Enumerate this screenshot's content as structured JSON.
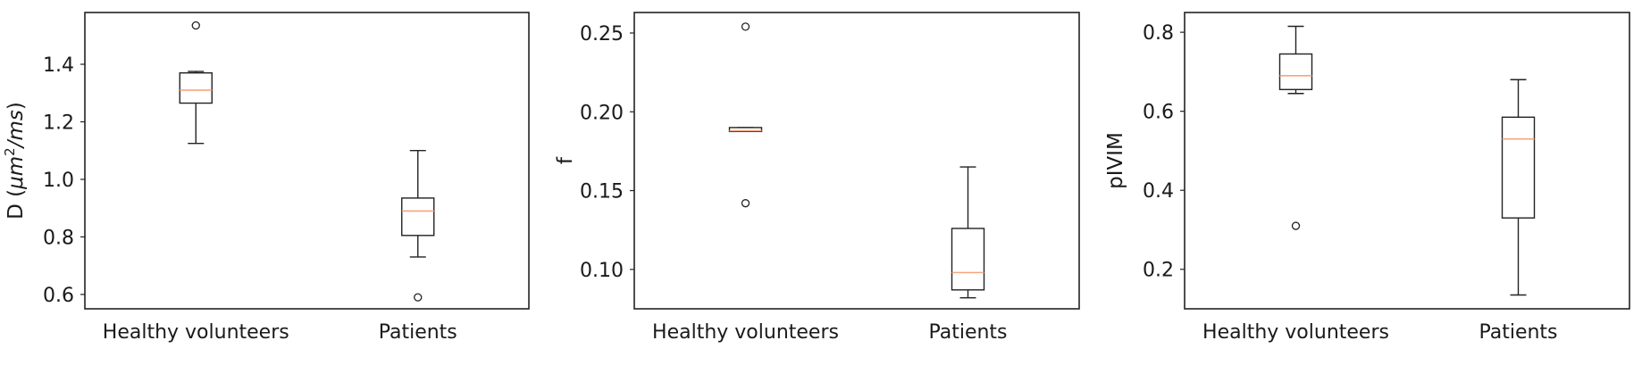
{
  "chart_data": [
    {
      "type": "box",
      "ylabel_plain": "D (",
      "ylabel_math": "μm",
      "ylabel_sup": "2",
      "ylabel_math2": "/ms",
      "ylabel_close": ")",
      "categories": [
        "Healthy volunteers",
        "Patients"
      ],
      "ylim": [
        0.55,
        1.58
      ],
      "yticks": [
        0.6,
        0.8,
        1.0,
        1.2,
        1.4
      ],
      "ytick_labels": [
        "0.6",
        "0.8",
        "1.0",
        "1.2",
        "1.4"
      ],
      "boxes": [
        {
          "q1": 1.265,
          "median": 1.31,
          "q3": 1.37,
          "whislo": 1.125,
          "whishi": 1.375,
          "fliers": [
            1.535
          ]
        },
        {
          "q1": 0.805,
          "median": 0.89,
          "q3": 0.935,
          "whislo": 0.73,
          "whishi": 1.1,
          "fliers": [
            0.59
          ]
        }
      ]
    },
    {
      "type": "box",
      "ylabel": "f",
      "categories": [
        "Healthy volunteers",
        "Patients"
      ],
      "ylim": [
        0.075,
        0.263
      ],
      "yticks": [
        0.1,
        0.15,
        0.2,
        0.25
      ],
      "ytick_labels": [
        "0.10",
        "0.15",
        "0.20",
        "0.25"
      ],
      "boxes": [
        {
          "q1": 0.1875,
          "median": 0.188,
          "q3": 0.19,
          "whislo": 0.1875,
          "whishi": 0.19,
          "fliers": [
            0.254,
            0.142
          ]
        },
        {
          "q1": 0.087,
          "median": 0.098,
          "q3": 0.126,
          "whislo": 0.082,
          "whishi": 0.165,
          "fliers": []
        }
      ]
    },
    {
      "type": "box",
      "ylabel": "pIVIM",
      "categories": [
        "Healthy volunteers",
        "Patients"
      ],
      "ylim": [
        0.1,
        0.85
      ],
      "yticks": [
        0.2,
        0.4,
        0.6,
        0.8
      ],
      "ytick_labels": [
        "0.2",
        "0.4",
        "0.6",
        "0.8"
      ],
      "boxes": [
        {
          "q1": 0.655,
          "median": 0.69,
          "q3": 0.745,
          "whislo": 0.645,
          "whishi": 0.815,
          "fliers": [
            0.31
          ]
        },
        {
          "q1": 0.33,
          "median": 0.53,
          "q3": 0.585,
          "whislo": 0.135,
          "whishi": 0.68,
          "fliers": []
        }
      ]
    }
  ],
  "colors": {
    "frame": "#222222",
    "median": "#f4a582",
    "text": "#1a1a1a"
  }
}
